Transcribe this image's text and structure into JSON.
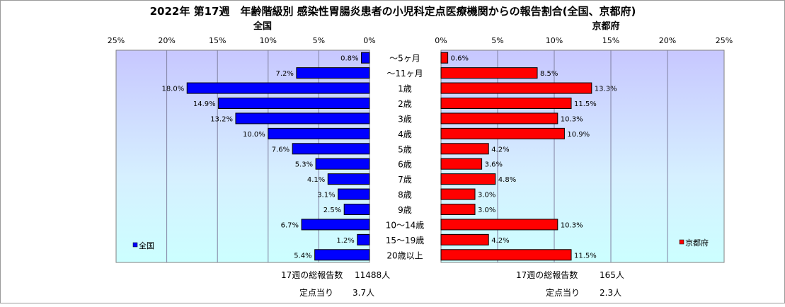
{
  "chart_data": {
    "type": "bar",
    "title": "2022年 第17週　年齢階級別 感染性胃腸炎患者の小児科定点医療機関からの報告割合(全国、京都府)",
    "categories": [
      "～5ヶ月",
      "～11ヶ月",
      "1歳",
      "2歳",
      "3歳",
      "4歳",
      "5歳",
      "6歳",
      "7歳",
      "8歳",
      "9歳",
      "10～14歳",
      "15～19歳",
      "20歳以上"
    ],
    "unit": "%",
    "xlim": [
      0,
      25
    ],
    "ticks": [
      "0%",
      "5%",
      "10%",
      "15%",
      "20%",
      "25%"
    ],
    "grid": true,
    "series": [
      {
        "name": "全国",
        "color": "#0000ff",
        "side": "left",
        "values": [
          0.8,
          7.2,
          18.0,
          14.9,
          13.2,
          10.0,
          7.6,
          5.3,
          4.1,
          3.1,
          2.5,
          6.7,
          1.2,
          5.4
        ],
        "labels": [
          "0.8%",
          "7.2%",
          "18.0%",
          "14.9%",
          "13.2%",
          "10.0%",
          "7.6%",
          "5.3%",
          "4.1%",
          "3.1%",
          "2.5%",
          "6.7%",
          "1.2%",
          "5.4%"
        ],
        "legend": "全国"
      },
      {
        "name": "京都府",
        "color": "#ff0000",
        "side": "right",
        "values": [
          0.6,
          8.5,
          13.3,
          11.5,
          10.3,
          10.9,
          4.2,
          3.6,
          4.8,
          3.0,
          3.0,
          10.3,
          4.2,
          11.5
        ],
        "labels": [
          "0.6%",
          "8.5%",
          "13.3%",
          "11.5%",
          "10.3%",
          "10.9%",
          "4.2%",
          "3.6%",
          "4.8%",
          "3.0%",
          "3.0%",
          "10.3%",
          "4.2%",
          "11.5%"
        ],
        "legend": "京都府"
      }
    ],
    "footer": {
      "left_total_label": "17週の総報告数",
      "left_total_value": "11488人",
      "left_per_label": "定点当り",
      "left_per_value": "3.7人",
      "right_total_label": "17週の総報告数",
      "right_total_value": "165人",
      "right_per_label": "定点当り",
      "right_per_value": "2.3人"
    }
  }
}
